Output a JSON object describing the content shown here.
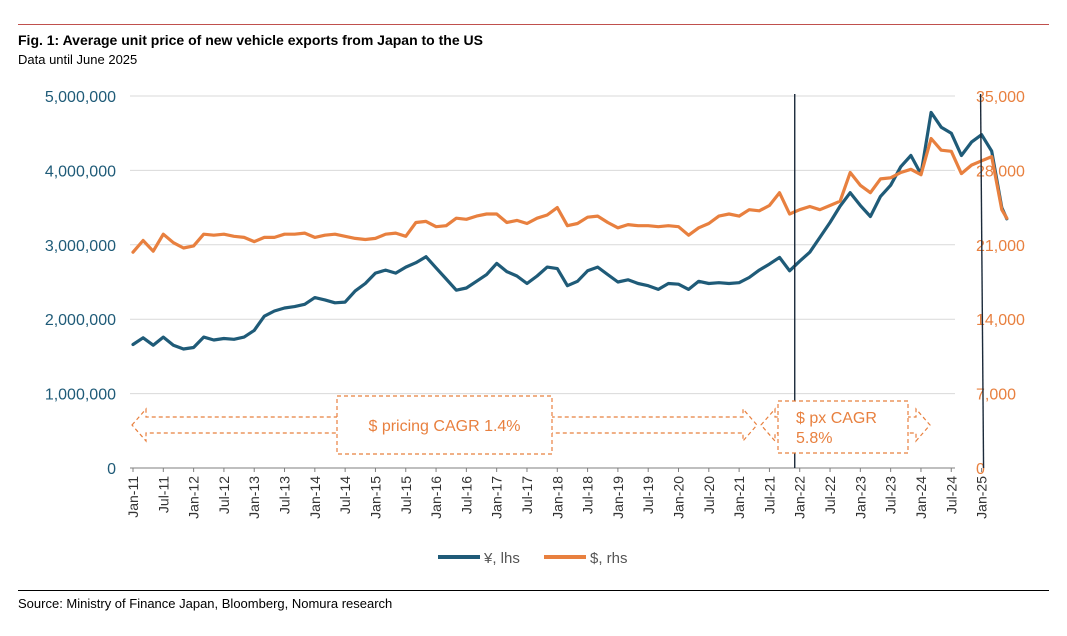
{
  "title": "Fig. 1: Average unit price of new vehicle exports from Japan to the US",
  "subtitle": "Data until June 2025",
  "source": "Source: Ministry of Finance Japan, Bloomberg, Nomura research",
  "colors": {
    "yen": "#1f5b78",
    "usd": "#e8803f",
    "grid": "#d9d9d9",
    "rule": "#c0504d"
  },
  "chart_data": {
    "type": "line",
    "x_ticks": [
      "Jan-11",
      "Jul-11",
      "Jan-12",
      "Jul-12",
      "Jan-13",
      "Jul-13",
      "Jan-14",
      "Jul-14",
      "Jan-15",
      "Jul-15",
      "Jan-16",
      "Jul-16",
      "Jan-17",
      "Jul-17",
      "Jan-18",
      "Jul-18",
      "Jan-19",
      "Jul-19",
      "Jan-20",
      "Jul-20",
      "Jan-21",
      "Jul-21",
      "Jan-22",
      "Jul-22",
      "Jan-23",
      "Jul-23",
      "Jan-24",
      "Jul-24",
      "Jan-25"
    ],
    "y_left": {
      "ticks": [
        "0",
        "1,000,000",
        "2,000,000",
        "3,000,000",
        "4,000,000",
        "5,000,000"
      ],
      "min": 0,
      "max": 5000000
    },
    "y_right": {
      "ticks": [
        "0",
        "7,000",
        "14,000",
        "21,000",
        "28,000",
        "35,000"
      ],
      "min": 0,
      "max": 35000
    },
    "legend": {
      "position": "bottom",
      "yen_label": "¥, lhs",
      "usd_label": "$, rhs"
    },
    "series": [
      {
        "name": "¥, lhs",
        "axis": "left",
        "points": [
          [
            "2011-01",
            1660000
          ],
          [
            "2011-03",
            1750000
          ],
          [
            "2011-05",
            1650000
          ],
          [
            "2011-07",
            1760000
          ],
          [
            "2011-09",
            1650000
          ],
          [
            "2011-11",
            1600000
          ],
          [
            "2012-01",
            1620000
          ],
          [
            "2012-03",
            1760000
          ],
          [
            "2012-05",
            1720000
          ],
          [
            "2012-07",
            1740000
          ],
          [
            "2012-09",
            1730000
          ],
          [
            "2012-11",
            1760000
          ],
          [
            "2013-01",
            1850000
          ],
          [
            "2013-03",
            2040000
          ],
          [
            "2013-05",
            2110000
          ],
          [
            "2013-07",
            2150000
          ],
          [
            "2013-09",
            2170000
          ],
          [
            "2013-11",
            2200000
          ],
          [
            "2014-01",
            2290000
          ],
          [
            "2014-03",
            2260000
          ],
          [
            "2014-05",
            2220000
          ],
          [
            "2014-07",
            2230000
          ],
          [
            "2014-09",
            2380000
          ],
          [
            "2014-11",
            2480000
          ],
          [
            "2015-01",
            2620000
          ],
          [
            "2015-03",
            2660000
          ],
          [
            "2015-05",
            2620000
          ],
          [
            "2015-07",
            2700000
          ],
          [
            "2015-09",
            2760000
          ],
          [
            "2015-11",
            2840000
          ],
          [
            "2016-01",
            2690000
          ],
          [
            "2016-03",
            2540000
          ],
          [
            "2016-05",
            2390000
          ],
          [
            "2016-07",
            2420000
          ],
          [
            "2016-09",
            2510000
          ],
          [
            "2016-11",
            2600000
          ],
          [
            "2017-01",
            2750000
          ],
          [
            "2017-03",
            2640000
          ],
          [
            "2017-05",
            2580000
          ],
          [
            "2017-07",
            2480000
          ],
          [
            "2017-09",
            2580000
          ],
          [
            "2017-11",
            2700000
          ],
          [
            "2018-01",
            2680000
          ],
          [
            "2018-03",
            2450000
          ],
          [
            "2018-05",
            2510000
          ],
          [
            "2018-07",
            2650000
          ],
          [
            "2018-09",
            2700000
          ],
          [
            "2018-11",
            2600000
          ],
          [
            "2019-01",
            2500000
          ],
          [
            "2019-03",
            2530000
          ],
          [
            "2019-05",
            2480000
          ],
          [
            "2019-07",
            2450000
          ],
          [
            "2019-09",
            2400000
          ],
          [
            "2019-11",
            2480000
          ],
          [
            "2020-01",
            2470000
          ],
          [
            "2020-03",
            2400000
          ],
          [
            "2020-05",
            2510000
          ],
          [
            "2020-07",
            2480000
          ],
          [
            "2020-09",
            2490000
          ],
          [
            "2020-11",
            2480000
          ],
          [
            "2021-01",
            2490000
          ],
          [
            "2021-03",
            2560000
          ],
          [
            "2021-05",
            2660000
          ],
          [
            "2021-07",
            2740000
          ],
          [
            "2021-09",
            2830000
          ],
          [
            "2021-11",
            2650000
          ],
          [
            "2022-01",
            2780000
          ],
          [
            "2022-03",
            2900000
          ],
          [
            "2022-05",
            3100000
          ],
          [
            "2022-07",
            3300000
          ],
          [
            "2022-09",
            3520000
          ],
          [
            "2022-11",
            3700000
          ],
          [
            "2023-01",
            3530000
          ],
          [
            "2023-03",
            3380000
          ],
          [
            "2023-05",
            3650000
          ],
          [
            "2023-07",
            3800000
          ],
          [
            "2023-09",
            4050000
          ],
          [
            "2023-11",
            4200000
          ],
          [
            "2024-01",
            3950000
          ],
          [
            "2024-03",
            4780000
          ],
          [
            "2024-05",
            4580000
          ],
          [
            "2024-07",
            4500000
          ],
          [
            "2024-09",
            4200000
          ],
          [
            "2024-11",
            4380000
          ],
          [
            "2025-01",
            4480000
          ],
          [
            "2025-03",
            4260000
          ],
          [
            "2025-05",
            3500000
          ],
          [
            "2025-06",
            3350000
          ]
        ]
      },
      {
        "name": "$, rhs",
        "axis": "right",
        "points": [
          [
            "2011-01",
            20300
          ],
          [
            "2011-03",
            21400
          ],
          [
            "2011-05",
            20400
          ],
          [
            "2011-07",
            22000
          ],
          [
            "2011-09",
            21200
          ],
          [
            "2011-11",
            20700
          ],
          [
            "2012-01",
            20900
          ],
          [
            "2012-03",
            22000
          ],
          [
            "2012-05",
            21900
          ],
          [
            "2012-07",
            22000
          ],
          [
            "2012-09",
            21800
          ],
          [
            "2012-11",
            21700
          ],
          [
            "2013-01",
            21300
          ],
          [
            "2013-03",
            21700
          ],
          [
            "2013-05",
            21700
          ],
          [
            "2013-07",
            22000
          ],
          [
            "2013-09",
            22000
          ],
          [
            "2013-11",
            22100
          ],
          [
            "2014-01",
            21700
          ],
          [
            "2014-03",
            21900
          ],
          [
            "2014-05",
            22000
          ],
          [
            "2014-07",
            21800
          ],
          [
            "2014-09",
            21600
          ],
          [
            "2014-11",
            21500
          ],
          [
            "2015-01",
            21600
          ],
          [
            "2015-03",
            22000
          ],
          [
            "2015-05",
            22100
          ],
          [
            "2015-07",
            21800
          ],
          [
            "2015-09",
            23100
          ],
          [
            "2015-11",
            23200
          ],
          [
            "2016-01",
            22700
          ],
          [
            "2016-03",
            22800
          ],
          [
            "2016-05",
            23500
          ],
          [
            "2016-07",
            23400
          ],
          [
            "2016-09",
            23700
          ],
          [
            "2016-11",
            23900
          ],
          [
            "2017-01",
            23900
          ],
          [
            "2017-03",
            23100
          ],
          [
            "2017-05",
            23300
          ],
          [
            "2017-07",
            23000
          ],
          [
            "2017-09",
            23500
          ],
          [
            "2017-11",
            23800
          ],
          [
            "2018-01",
            24500
          ],
          [
            "2018-03",
            22800
          ],
          [
            "2018-05",
            23000
          ],
          [
            "2018-07",
            23600
          ],
          [
            "2018-09",
            23700
          ],
          [
            "2018-11",
            23100
          ],
          [
            "2019-01",
            22600
          ],
          [
            "2019-03",
            22900
          ],
          [
            "2019-05",
            22800
          ],
          [
            "2019-07",
            22800
          ],
          [
            "2019-09",
            22700
          ],
          [
            "2019-11",
            22800
          ],
          [
            "2020-01",
            22700
          ],
          [
            "2020-03",
            21900
          ],
          [
            "2020-05",
            22600
          ],
          [
            "2020-07",
            23000
          ],
          [
            "2020-09",
            23700
          ],
          [
            "2020-11",
            23900
          ],
          [
            "2021-01",
            23700
          ],
          [
            "2021-03",
            24300
          ],
          [
            "2021-05",
            24200
          ],
          [
            "2021-07",
            24700
          ],
          [
            "2021-09",
            25900
          ],
          [
            "2021-11",
            23900
          ],
          [
            "2022-01",
            24300
          ],
          [
            "2022-03",
            24600
          ],
          [
            "2022-05",
            24300
          ],
          [
            "2022-07",
            24700
          ],
          [
            "2022-09",
            25100
          ],
          [
            "2022-11",
            27800
          ],
          [
            "2023-01",
            26600
          ],
          [
            "2023-03",
            25900
          ],
          [
            "2023-05",
            27200
          ],
          [
            "2023-07",
            27300
          ],
          [
            "2023-09",
            27800
          ],
          [
            "2023-11",
            28100
          ],
          [
            "2024-01",
            27600
          ],
          [
            "2024-03",
            31000
          ],
          [
            "2024-05",
            29900
          ],
          [
            "2024-07",
            29800
          ],
          [
            "2024-09",
            27700
          ],
          [
            "2024-11",
            28500
          ],
          [
            "2025-01",
            28900
          ],
          [
            "2025-03",
            29300
          ],
          [
            "2025-05",
            24300
          ],
          [
            "2025-06",
            23500
          ]
        ]
      }
    ],
    "vertical_markers": [
      "2022-01",
      "2025-01"
    ],
    "annotations": [
      {
        "text": "$ pricing CAGR 1.4%",
        "lines": [
          "$ pricing CAGR 1.4%"
        ]
      },
      {
        "text": "$ px CAGR 5.8%",
        "lines": [
          "$ px CAGR",
          "5.8%"
        ]
      }
    ]
  }
}
